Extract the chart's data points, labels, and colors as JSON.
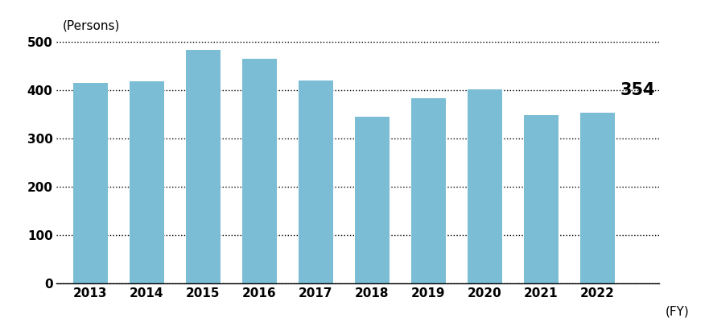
{
  "categories": [
    "2013",
    "2014",
    "2015",
    "2016",
    "2017",
    "2018",
    "2019",
    "2020",
    "2021",
    "2022"
  ],
  "values": [
    415,
    418,
    483,
    465,
    420,
    345,
    383,
    402,
    348,
    354
  ],
  "bar_color": "#7BBDD4",
  "persons_label": "(Persons)",
  "xlabel_suffix": "(FY)",
  "ylim": [
    0,
    520
  ],
  "yticks": [
    0,
    100,
    200,
    300,
    400,
    500
  ],
  "last_bar_label": "354",
  "last_bar_label_fontsize": 15,
  "last_bar_label_fontweight": "bold",
  "grid_color": "#000000",
  "grid_linestyle": "dotted",
  "grid_linewidth": 1.0,
  "background_color": "#ffffff",
  "bar_width": 0.62,
  "tick_fontsize": 11,
  "persons_label_fontsize": 11,
  "fy_fontsize": 11,
  "ytick_fontweight": "bold",
  "xtick_fontweight": "bold"
}
